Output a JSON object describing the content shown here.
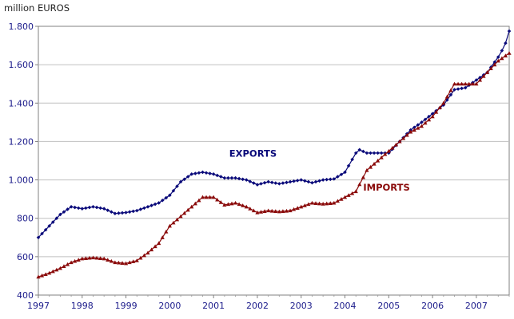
{
  "chart_data": {
    "type": "line",
    "title": "",
    "ylabel": "million EUROS",
    "xlabel": "",
    "x_ticks": [
      "1997",
      "1998",
      "1999",
      "2000",
      "2001",
      "2002",
      "2003",
      "2004",
      "2005",
      "2006",
      "2007"
    ],
    "y_ticks": [
      "400",
      "600",
      "800",
      "1.000",
      "1.200",
      "1.400",
      "1.600",
      "1.800"
    ],
    "xlim": [
      1997.0,
      2007.75
    ],
    "ylim": [
      400,
      1800
    ],
    "grid": true,
    "legend": "none (inline series labels)",
    "series": [
      {
        "name": "EXPORTS",
        "color": "#0a0a7a",
        "marker": "diamond",
        "x": [
          1997.0,
          1997.25,
          1997.5,
          1997.75,
          1998.0,
          1998.25,
          1998.5,
          1998.75,
          1999.0,
          1999.25,
          1999.5,
          1999.75,
          2000.0,
          2000.25,
          2000.5,
          2000.75,
          2001.0,
          2001.25,
          2001.5,
          2001.75,
          2002.0,
          2002.25,
          2002.5,
          2002.75,
          2003.0,
          2003.25,
          2003.5,
          2003.75,
          2004.0,
          2004.1,
          2004.3,
          2004.5,
          2004.75,
          2005.0,
          2005.25,
          2005.5,
          2005.75,
          2006.0,
          2006.25,
          2006.5,
          2006.75,
          2007.0,
          2007.25,
          2007.5,
          2007.65,
          2007.75
        ],
        "y": [
          700,
          760,
          820,
          860,
          850,
          860,
          850,
          825,
          830,
          840,
          860,
          880,
          920,
          990,
          1030,
          1040,
          1030,
          1010,
          1010,
          1000,
          975,
          990,
          980,
          990,
          1000,
          985,
          1000,
          1005,
          1040,
          1080,
          1160,
          1140,
          1140,
          1140,
          1200,
          1260,
          1300,
          1345,
          1390,
          1470,
          1480,
          1520,
          1560,
          1640,
          1700,
          1775
        ]
      },
      {
        "name": "IMPORTS",
        "color": "#8a0a0a",
        "marker": "triangle",
        "x": [
          1997.0,
          1997.25,
          1997.5,
          1997.75,
          1998.0,
          1998.25,
          1998.5,
          1998.75,
          1999.0,
          1999.25,
          1999.5,
          1999.75,
          2000.0,
          2000.25,
          2000.5,
          2000.75,
          2001.0,
          2001.25,
          2001.5,
          2001.75,
          2002.0,
          2002.25,
          2002.5,
          2002.75,
          2003.0,
          2003.25,
          2003.5,
          2003.75,
          2004.0,
          2004.25,
          2004.5,
          2004.75,
          2005.0,
          2005.25,
          2005.5,
          2005.75,
          2006.0,
          2006.25,
          2006.5,
          2006.75,
          2007.0,
          2007.25,
          2007.5,
          2007.75
        ],
        "y": [
          495,
          515,
          540,
          570,
          590,
          595,
          590,
          570,
          565,
          580,
          620,
          670,
          760,
          810,
          860,
          910,
          910,
          870,
          880,
          860,
          830,
          840,
          835,
          840,
          860,
          880,
          875,
          880,
          910,
          940,
          1050,
          1100,
          1150,
          1200,
          1250,
          1280,
          1330,
          1400,
          1500,
          1500,
          1500,
          1560,
          1620,
          1660
        ]
      }
    ],
    "annotations": [
      {
        "text": "EXPORTS",
        "x": 2001.9,
        "y": 1120
      },
      {
        "text": "IMPORTS",
        "x": 2004.95,
        "y": 945
      }
    ]
  }
}
